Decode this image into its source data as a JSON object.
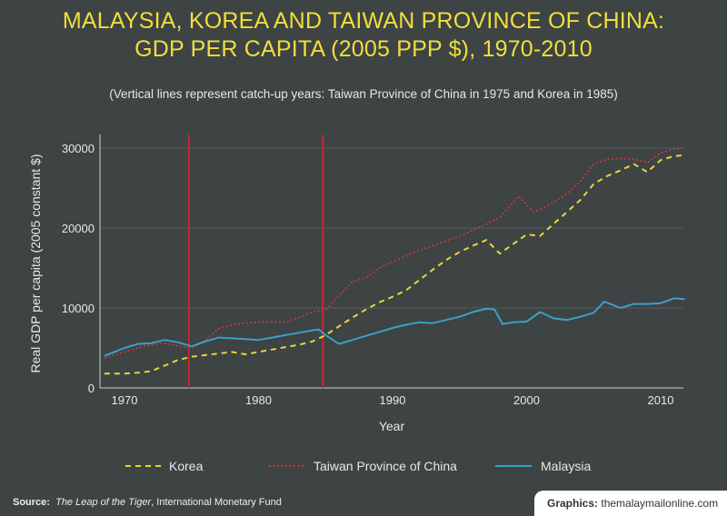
{
  "chart_data": {
    "type": "line",
    "title_line1": "MALAYSIA, KOREA AND TAIWAN PROVINCE OF CHINA:",
    "title_line2": "GDP PER CAPITA (2005 PPP $), 1970-2010",
    "subtitle": "(Vertical lines represent catch-up years: Taiwan Province of China in 1975 and Korea in 1985)",
    "xlabel": "Year",
    "ylabel": "Real GDP per capita (2005 constant $)",
    "xlim": [
      1968,
      2011.8
    ],
    "ylim": [
      0,
      30000
    ],
    "xticks": [
      "1970",
      "1980",
      "1990",
      "2000",
      "2010"
    ],
    "yticks": [
      "0",
      "10000",
      "20000",
      "30000"
    ],
    "grid": true,
    "vertical_lines": [
      1974.8,
      1984.8
    ],
    "legend_position": "bottom",
    "series": [
      {
        "name": "Korea",
        "style": "dashed",
        "color": "#e6d838",
        "x": [
          1968.5,
          1970,
          1971,
          1972,
          1973,
          1974,
          1975,
          1976,
          1977,
          1978,
          1979,
          1980,
          1981,
          1982,
          1983,
          1984,
          1985,
          1986,
          1987,
          1988,
          1989,
          1990,
          1991,
          1992,
          1993,
          1994,
          1995,
          1996,
          1997,
          1998,
          1999,
          2000,
          2001,
          2002,
          2003,
          2004,
          2005,
          2006,
          2007,
          2008,
          2009,
          2010,
          2011,
          2011.8
        ],
        "values": [
          1800,
          1800,
          1900,
          2100,
          2800,
          3500,
          3900,
          4100,
          4300,
          4500,
          4200,
          4500,
          4800,
          5100,
          5400,
          5800,
          6600,
          7700,
          8800,
          9800,
          10700,
          11400,
          12200,
          13500,
          14800,
          16000,
          17000,
          17800,
          18500,
          16800,
          18000,
          19200,
          19000,
          20500,
          22000,
          23500,
          25500,
          26500,
          27200,
          28000,
          27000,
          28500,
          29000,
          29100
        ]
      },
      {
        "name": "Taiwan Province of China",
        "style": "dotted",
        "color": "#c8393c",
        "x": [
          1968.5,
          1970,
          1971,
          1972,
          1973,
          1974,
          1975,
          1976,
          1977,
          1978,
          1979,
          1980,
          1981,
          1982,
          1983,
          1984,
          1985,
          1986,
          1987,
          1988,
          1989,
          1990,
          1991,
          1992,
          1993,
          1994,
          1995,
          1996,
          1997,
          1998,
          1999.4,
          2000.5,
          2001,
          2002,
          2003,
          2004,
          2005,
          2006,
          2007,
          2008,
          2009,
          2010,
          2011,
          2011.8
        ],
        "values": [
          3700,
          4500,
          5000,
          5400,
          5600,
          5200,
          5000,
          5900,
          7400,
          7900,
          8100,
          8200,
          8300,
          8200,
          8800,
          9500,
          9800,
          11500,
          13300,
          13800,
          15000,
          15800,
          16500,
          17200,
          17800,
          18400,
          19000,
          19700,
          20500,
          21300,
          24000,
          22000,
          22300,
          23200,
          24300,
          25800,
          28000,
          28600,
          28700,
          28600,
          28200,
          29400,
          29900,
          30000
        ]
      },
      {
        "name": "Malaysia",
        "style": "solid",
        "color": "#3ba0c8",
        "x": [
          1968.5,
          1970,
          1971,
          1972,
          1973,
          1974,
          1975,
          1976,
          1977,
          1978,
          1979,
          1980,
          1981,
          1982,
          1983,
          1984,
          1984.5,
          1985,
          1986,
          1987,
          1988,
          1989,
          1990,
          1991,
          1992,
          1993,
          1994,
          1995,
          1996,
          1997,
          1997.6,
          1998.2,
          1999,
          2000,
          2001,
          2002,
          2003,
          2004,
          2005,
          2005.8,
          2007,
          2008,
          2009,
          2010,
          2011,
          2011.8
        ],
        "values": [
          4000,
          5000,
          5500,
          5600,
          6000,
          5700,
          5200,
          5800,
          6300,
          6200,
          6100,
          6000,
          6300,
          6600,
          6900,
          7200,
          7300,
          6600,
          5500,
          6000,
          6500,
          7000,
          7500,
          7900,
          8200,
          8100,
          8500,
          8900,
          9500,
          9900,
          9800,
          8000,
          8200,
          8300,
          9500,
          8700,
          8500,
          8900,
          9400,
          10800,
          10000,
          10500,
          10500,
          10600,
          11200,
          11100
        ]
      }
    ]
  },
  "footer": {
    "source_label": "Source:",
    "source_title": "The Leap of the Tiger",
    "source_rest": ", International Monetary Fund",
    "graphics_label": "Graphics:",
    "graphics_site": "themalaymailonline.com"
  }
}
